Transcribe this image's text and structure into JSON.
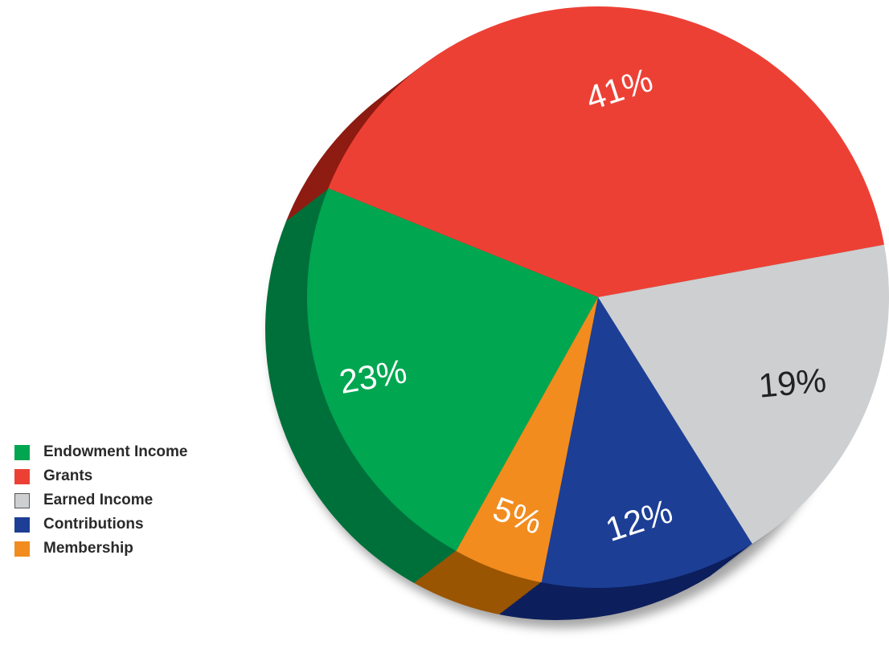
{
  "chart_data": {
    "type": "pie",
    "title": "",
    "categories": [
      "Endowment Income",
      "Grants",
      "Earned Income",
      "Contributions",
      "Membership"
    ],
    "values": [
      23,
      41,
      19,
      12,
      5
    ],
    "labels": [
      "23%",
      "41%",
      "19%",
      "12%",
      "5%"
    ],
    "unit": "%",
    "colors": [
      "#00a650",
      "#ed4035",
      "#cdcfd1",
      "#1c3e95",
      "#f28c1e"
    ],
    "side_colors": [
      "#00703a",
      "#8e1c12",
      "#97999c",
      "#0d1f5c",
      "#9a5503"
    ],
    "label_colors": [
      "#ffffff",
      "#ffffff",
      "#222222",
      "#ffffff",
      "#ffffff"
    ],
    "legend_position": "left"
  }
}
